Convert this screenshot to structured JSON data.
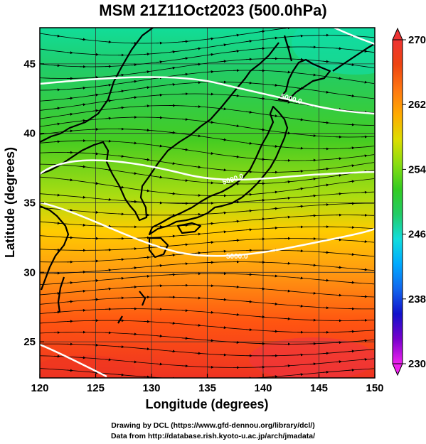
{
  "title": "MSM 21Z11Oct2023 (500.0hPa)",
  "xlabel": "Longitude (degrees)",
  "ylabel": "Latitude  (degrees)",
  "credits": [
    "Drawing by DCL (https://www.gfd-dennou.org/library/dcl/)",
    "Data from http://database.rish.kyoto-u.ac.jp/arch/jmadata/"
  ],
  "chart_data": {
    "type": "heatmap",
    "variable": "temperature with streamlines and height contours",
    "xlim": [
      120,
      150
    ],
    "ylim": [
      22.4,
      47.6
    ],
    "x_ticks": [
      "120",
      "125",
      "130",
      "135",
      "140",
      "145",
      "150"
    ],
    "y_ticks": [
      "25",
      "30",
      "35",
      "40",
      "45"
    ],
    "colorbar": {
      "range": [
        230,
        270
      ],
      "ticks": [
        "270",
        "262",
        "254",
        "246",
        "238",
        "230"
      ],
      "stops": [
        "#ee22ee",
        "#7700cc",
        "#1111cc",
        "#1166ee",
        "#00aaff",
        "#11dddd",
        "#22cc66",
        "#33cc22",
        "#88dd11",
        "#dddd00",
        "#ffaa00",
        "#ff7711",
        "#ee4411",
        "#ee3333"
      ]
    },
    "contours": [
      {
        "label": "5000.0",
        "lat_at_140E": 31.5
      },
      {
        "label": "5000.0",
        "lat_at_140E": 37.7
      },
      {
        "label": "5000.0",
        "lat_at_140E": 43.8
      }
    ]
  }
}
